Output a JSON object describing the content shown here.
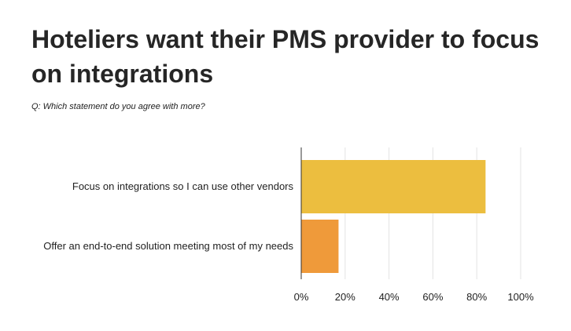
{
  "title": "Hoteliers want their PMS provider to focus on integrations",
  "subtitle": "Q: Which statement do you agree with more?",
  "chart_data": {
    "type": "bar",
    "orientation": "horizontal",
    "categories": [
      "Focus on integrations so I can use other vendors",
      "Offer an end-to-end solution meeting most of my needs"
    ],
    "values": [
      84,
      17
    ],
    "bar_colors": [
      "#ECBE3F",
      "#EF9A3A"
    ],
    "xlim": [
      0,
      100
    ],
    "xticks": [
      "0%",
      "20%",
      "40%",
      "60%",
      "80%",
      "100%"
    ],
    "grid": true,
    "legend": "none"
  }
}
